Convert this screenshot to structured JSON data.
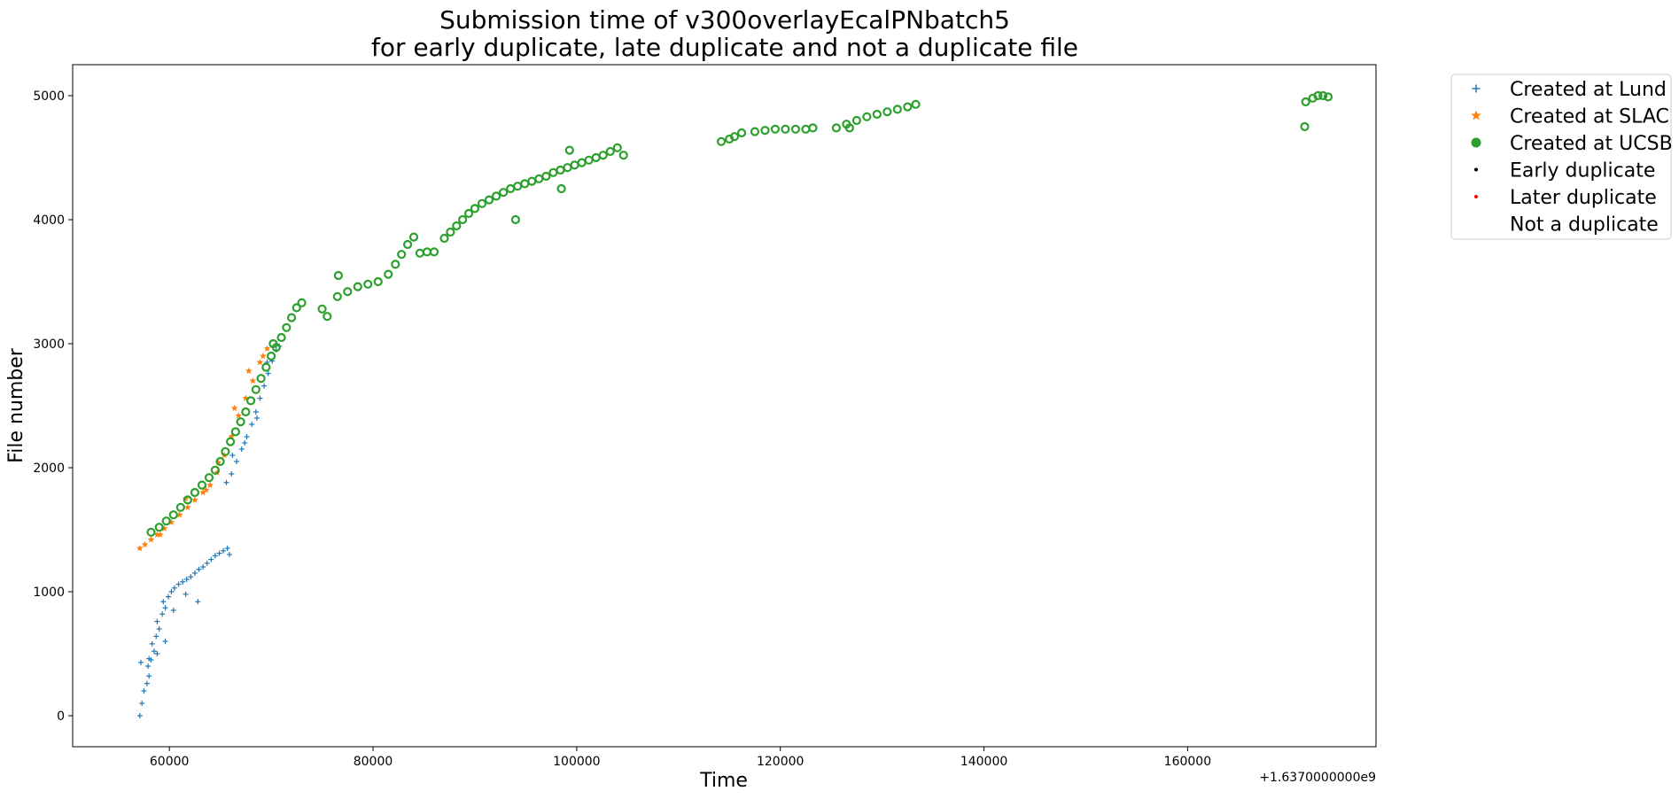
{
  "chart_data": {
    "type": "scatter",
    "title": [
      "Submission time of v300overlayEcalPNbatch5",
      "for early duplicate, late duplicate and not a duplicate file"
    ],
    "xlabel": "Time",
    "ylabel": "File number",
    "x_offset_label": "+1.6370000000e9",
    "xlim": [
      50500,
      178500
    ],
    "ylim": [
      -250,
      5250
    ],
    "xticks": [
      60000,
      80000,
      100000,
      120000,
      140000,
      160000
    ],
    "yticks": [
      0,
      1000,
      2000,
      3000,
      4000,
      5000
    ],
    "grid": false,
    "legend_position": "outside-top-right",
    "legend": [
      {
        "label": "Created at Lund",
        "marker": "plus",
        "color": "#1f77b4"
      },
      {
        "label": "Created at SLAC",
        "marker": "star",
        "color": "#ff7f0e"
      },
      {
        "label": "Created at UCSB",
        "marker": "circle",
        "color": "#2ca02c"
      },
      {
        "label": "Early duplicate",
        "marker": "dot",
        "color": "#000000"
      },
      {
        "label": "Later duplicate",
        "marker": "dot",
        "color": "#ff0000"
      },
      {
        "label": "Not a duplicate",
        "marker": "none",
        "color": "#ffffff"
      }
    ],
    "series": [
      {
        "name": "Created at Lund",
        "color": "#1f77b4",
        "marker": "plus",
        "x": [
          57100,
          57300,
          57500,
          57800,
          58000,
          57900,
          58200,
          58500,
          58300,
          58700,
          59000,
          58800,
          59300,
          59600,
          59400,
          59900,
          60200,
          60500,
          60900,
          61300,
          61700,
          62100,
          62500,
          62900,
          63300,
          63700,
          64100,
          64500,
          64900,
          65300,
          65700,
          65900,
          57200,
          58000,
          58800,
          59600,
          60400,
          61600,
          62800,
          65600,
          66100,
          66600,
          67100,
          67600,
          68100,
          68500,
          68900,
          69300,
          69700,
          70100,
          70500,
          66200,
          67400,
          68600,
          69600,
          70800
        ],
        "y": [
          0,
          100,
          200,
          260,
          320,
          400,
          450,
          520,
          580,
          640,
          700,
          760,
          820,
          870,
          920,
          960,
          1000,
          1030,
          1060,
          1080,
          1100,
          1120,
          1150,
          1180,
          1200,
          1230,
          1260,
          1290,
          1310,
          1330,
          1350,
          1300,
          430,
          460,
          500,
          600,
          850,
          980,
          920,
          1880,
          1950,
          2050,
          2150,
          2250,
          2350,
          2450,
          2560,
          2660,
          2760,
          2860,
          2950,
          2100,
          2200,
          2400,
          2850,
          2980
        ]
      },
      {
        "name": "Created at SLAC",
        "color": "#ff7f0e",
        "marker": "star",
        "x": [
          57100,
          57600,
          58200,
          58800,
          59500,
          60200,
          61000,
          61800,
          62500,
          63300,
          64000,
          64700,
          65400,
          66100,
          66800,
          67500,
          68200,
          68900,
          69600,
          59100,
          61600,
          63600,
          64800,
          66400,
          67800,
          69200
        ],
        "y": [
          1350,
          1380,
          1420,
          1460,
          1510,
          1560,
          1620,
          1680,
          1740,
          1800,
          1860,
          1960,
          2100,
          2250,
          2420,
          2560,
          2700,
          2850,
          2960,
          1460,
          1750,
          1820,
          2040,
          2480,
          2780,
          2900
        ]
      },
      {
        "name": "Created at UCSB",
        "color": "#2ca02c",
        "marker": "circle",
        "x": [
          58200,
          59000,
          59700,
          60400,
          61100,
          61800,
          62500,
          63200,
          63900,
          64500,
          65000,
          65500,
          66000,
          66500,
          67000,
          67500,
          68000,
          68500,
          69000,
          69500,
          70000,
          70500,
          71000,
          71500,
          72000,
          72500,
          70200,
          73000,
          75000,
          75500,
          76500,
          77500,
          78500,
          79500,
          80500,
          81500,
          82200,
          82800,
          83400,
          84000,
          84600,
          85300,
          86000,
          87000,
          87600,
          88200,
          88800,
          89400,
          90000,
          90700,
          91400,
          92100,
          92800,
          93500,
          94200,
          94900,
          95600,
          96300,
          97000,
          97700,
          98400,
          99100,
          99800,
          100500,
          101200,
          101900,
          102600,
          103300,
          104000,
          104600,
          98500,
          99300,
          94000,
          76600,
          114200,
          115000,
          115500,
          116200,
          117500,
          118500,
          119500,
          120500,
          121500,
          122500,
          123200,
          125500,
          126500,
          127500,
          128500,
          129500,
          130500,
          131500,
          132500,
          133300,
          126800,
          171600,
          172300,
          172800,
          173300,
          173800,
          171500
        ],
        "y": [
          1480,
          1520,
          1570,
          1620,
          1680,
          1740,
          1800,
          1860,
          1920,
          1980,
          2050,
          2130,
          2210,
          2290,
          2370,
          2450,
          2540,
          2630,
          2720,
          2810,
          2900,
          2970,
          3050,
          3130,
          3210,
          3290,
          3000,
          3330,
          3280,
          3220,
          3380,
          3420,
          3460,
          3480,
          3500,
          3560,
          3640,
          3720,
          3800,
          3860,
          3730,
          3740,
          3740,
          3850,
          3900,
          3950,
          4000,
          4050,
          4090,
          4130,
          4160,
          4190,
          4220,
          4250,
          4270,
          4290,
          4310,
          4330,
          4350,
          4380,
          4400,
          4420,
          4440,
          4460,
          4480,
          4500,
          4520,
          4550,
          4580,
          4520,
          4250,
          4560,
          4000,
          3550,
          4630,
          4650,
          4670,
          4700,
          4710,
          4720,
          4730,
          4730,
          4730,
          4730,
          4740,
          4740,
          4770,
          4800,
          4830,
          4850,
          4870,
          4890,
          4910,
          4930,
          4740,
          4950,
          4980,
          5000,
          5000,
          4990,
          4750
        ]
      }
    ]
  }
}
